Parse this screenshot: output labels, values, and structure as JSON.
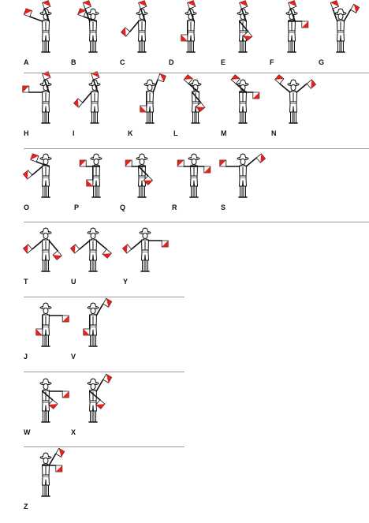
{
  "colors": {
    "flag_red": "#e8201a",
    "flag_white": "#ffffff",
    "outline": "#111111",
    "divider": "#9a9a9a"
  },
  "rows": [
    {
      "letters": [
        {
          "label": "A",
          "flags": [
            [
              200,
              58
            ],
            [
              250,
              58
            ]
          ]
        },
        {
          "label": "B",
          "flags": [
            [
              250,
              54
            ],
            [
              200,
              58
            ]
          ]
        },
        {
          "label": "C",
          "flags": [
            [
              130,
              58
            ],
            [
              250,
              58
            ]
          ]
        },
        {
          "label": "D",
          "flags": [
            [
              90,
              52
            ],
            [
              250,
              58
            ]
          ]
        },
        {
          "label": "E",
          "flags": [
            [
              50,
              58
            ],
            [
              250,
              58
            ]
          ]
        },
        {
          "label": "F",
          "flags": [
            [
              0,
              58
            ],
            [
              250,
              58
            ]
          ]
        },
        {
          "label": "G",
          "flags": [
            [
              250,
              54
            ],
            [
              300,
              58
            ]
          ]
        }
      ]
    },
    {
      "letters": [
        {
          "label": "H",
          "flags": [
            [
              180,
              58
            ],
            [
              250,
              58
            ]
          ]
        },
        {
          "label": "I",
          "flags": [
            [
              130,
              58
            ],
            [
              250,
              58
            ]
          ]
        },
        {
          "label": "K",
          "flags": [
            [
              90,
              52
            ],
            [
              290,
              58
            ]
          ]
        },
        {
          "label": "L",
          "flags": [
            [
              50,
              58
            ],
            [
              220,
              58
            ]
          ]
        },
        {
          "label": "M",
          "flags": [
            [
              0,
              58
            ],
            [
              220,
              58
            ]
          ]
        },
        {
          "label": "N",
          "flags": [
            [
              220,
              58
            ],
            [
              320,
              58
            ]
          ]
        }
      ]
    },
    {
      "letters": [
        {
          "label": "O",
          "flags": [
            [
              140,
              58
            ],
            [
              200,
              58
            ]
          ]
        },
        {
          "label": "P",
          "flags": [
            [
              90,
              52
            ],
            [
              180,
              58
            ]
          ]
        },
        {
          "label": "Q",
          "flags": [
            [
              45,
              58
            ],
            [
              180,
              58
            ]
          ]
        },
        {
          "label": "R",
          "flags": [
            [
              0,
              58
            ],
            [
              180,
              58
            ]
          ]
        },
        {
          "label": "S",
          "flags": [
            [
              180,
              58
            ],
            [
              320,
              58
            ]
          ]
        }
      ]
    },
    {
      "letters": [
        {
          "label": "T",
          "flags": [
            [
              140,
              58
            ],
            [
              50,
              58
            ]
          ]
        },
        {
          "label": "U",
          "flags": [
            [
              140,
              58
            ],
            [
              40,
              58
            ]
          ]
        },
        {
          "label": "Y",
          "flags": [
            [
              140,
              58
            ],
            [
              0,
              58
            ]
          ]
        }
      ]
    },
    {
      "letters": [
        {
          "label": "J",
          "flags": [
            [
              90,
              52
            ],
            [
              0,
              58
            ]
          ]
        },
        {
          "label": "V",
          "flags": [
            [
              90,
              52
            ],
            [
              300,
              58
            ]
          ]
        }
      ]
    },
    {
      "letters": [
        {
          "label": "W",
          "flags": [
            [
              40,
              58
            ],
            [
              0,
              58
            ]
          ]
        },
        {
          "label": "X",
          "flags": [
            [
              40,
              58
            ],
            [
              300,
              58
            ]
          ]
        }
      ]
    },
    {
      "letters": [
        {
          "label": "Z",
          "flags": [
            [
              0,
              58
            ],
            [
              300,
              58
            ]
          ]
        }
      ]
    }
  ]
}
